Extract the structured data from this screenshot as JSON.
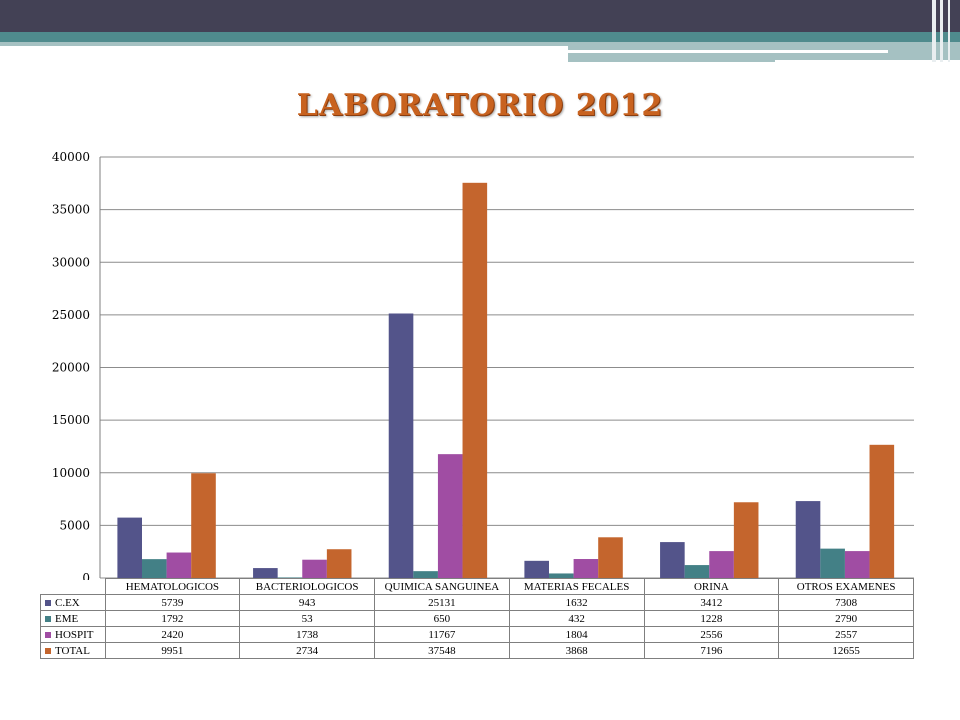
{
  "slide": {
    "title": "LABORATORIO  2012",
    "decor_colors": [
      "#434155",
      "#4f8b8d",
      "#a5c1c2"
    ]
  },
  "chart_data": {
    "type": "bar",
    "categories": [
      "HEMATOLOGICOS",
      "BACTERIOLOGICOS",
      "QUIMICA SANGUINEA",
      "MATERIAS FECALES",
      "ORINA",
      "OTROS EXAMENES"
    ],
    "series": [
      {
        "name": "C.EX",
        "color": "#53548a",
        "values": [
          5739,
          943,
          25131,
          1632,
          3412,
          7308
        ]
      },
      {
        "name": "EME",
        "color": "#438086",
        "values": [
          1792,
          53,
          650,
          432,
          1228,
          2790
        ]
      },
      {
        "name": "HOSPIT",
        "color": "#a04da3",
        "values": [
          2420,
          1738,
          11767,
          1804,
          2556,
          2557
        ]
      },
      {
        "name": "TOTAL",
        "color": "#c4652d",
        "values": [
          9951,
          2734,
          37548,
          3868,
          7196,
          12655
        ]
      }
    ],
    "ylim": [
      0,
      40000
    ],
    "yticks": [
      0,
      5000,
      10000,
      15000,
      20000,
      25000,
      30000,
      35000,
      40000
    ],
    "grid": true,
    "legend": "data-table-below"
  }
}
